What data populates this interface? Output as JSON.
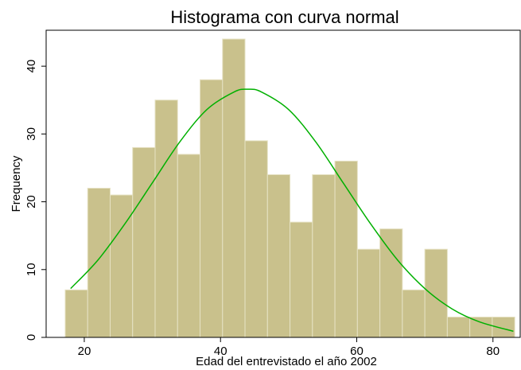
{
  "chart_data": {
    "type": "histogram",
    "title": "Histograma con curva normal",
    "xlabel": "Edad del entrevistado el año 2002",
    "ylabel": "Frequency",
    "bins": [
      17.2,
      20.5,
      23.8,
      27.1,
      30.4,
      33.7,
      37.0,
      40.3,
      43.6,
      46.9,
      50.2,
      53.5,
      56.8,
      60.1,
      63.4,
      66.7,
      70.0,
      73.3,
      76.6,
      79.9,
      83.2
    ],
    "values": [
      7,
      22,
      21,
      28,
      35,
      27,
      38,
      44,
      29,
      24,
      17,
      24,
      26,
      13,
      16,
      7,
      13,
      3,
      3,
      3
    ],
    "color": "#c9c18c",
    "curve": {
      "color": "#00b000",
      "x": [
        18,
        22,
        26,
        30,
        34,
        38,
        42,
        44,
        46,
        50,
        54,
        58,
        62,
        66,
        70,
        74,
        78,
        83
      ],
      "values": [
        7.2,
        11.4,
        16.8,
        22.8,
        28.8,
        33.6,
        36.2,
        36.6,
        36.2,
        33.6,
        28.8,
        22.8,
        16.8,
        11.4,
        7.2,
        4.2,
        2.3,
        0.9
      ]
    },
    "xlim": [
      14.4,
      84.0
    ],
    "ylim": [
      0,
      45.3
    ],
    "xticks": [
      20,
      40,
      60,
      80
    ],
    "yticks": [
      0,
      10,
      20,
      30,
      40
    ]
  }
}
